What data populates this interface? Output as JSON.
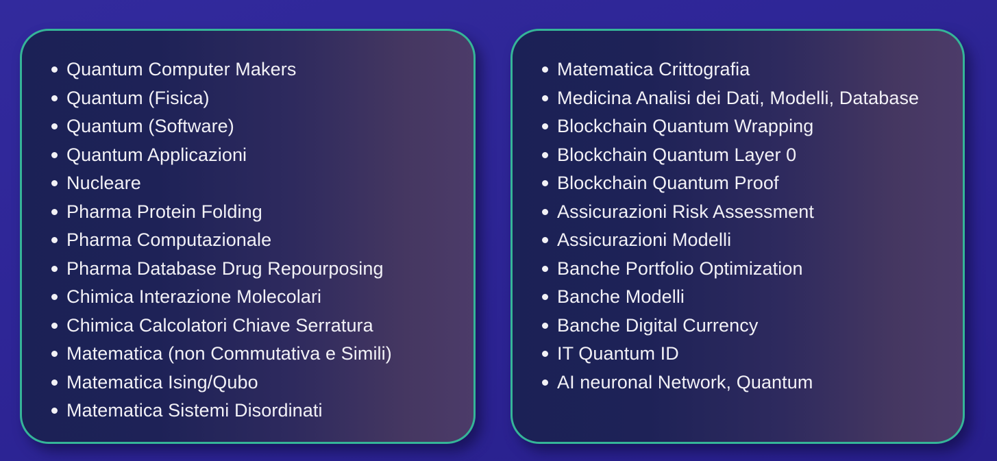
{
  "colors": {
    "background_start": "#322a9d",
    "background_end": "#281f8c",
    "panel_gradient_start": "#1b2156",
    "panel_gradient_end": "#4c3b69",
    "panel_border": "#35b598",
    "text": "#f2f1f6"
  },
  "panels": [
    {
      "name": "left-category-panel",
      "items": [
        "Quantum Computer Makers",
        "Quantum (Fisica)",
        "Quantum (Software)",
        "Quantum Applicazioni",
        "Nucleare",
        "Pharma Protein Folding",
        "Pharma Computazionale",
        "Pharma Database Drug Repourposing",
        "Chimica Interazione Molecolari",
        "Chimica Calcolatori Chiave Serratura",
        "Matematica (non Commutativa e Simili)",
        "Matematica Ising/Qubo",
        "Matematica Sistemi Disordinati"
      ]
    },
    {
      "name": "right-category-panel",
      "items": [
        "Matematica Crittografia",
        "Medicina Analisi dei Dati, Modelli, Database",
        "Blockchain Quantum Wrapping",
        "Blockchain Quantum Layer 0",
        "Blockchain Quantum Proof",
        "Assicurazioni Risk Assessment",
        "Assicurazioni Modelli",
        "Banche Portfolio Optimization",
        "Banche Modelli",
        "Banche Digital Currency",
        "IT Quantum ID",
        "AI neuronal Network, Quantum"
      ]
    }
  ]
}
